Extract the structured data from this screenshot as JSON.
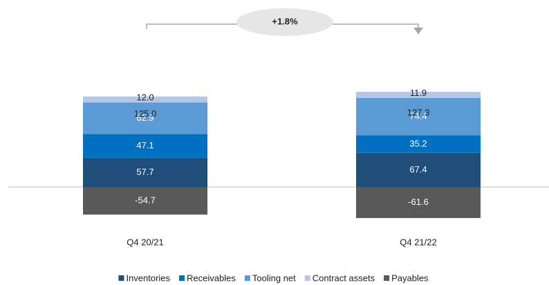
{
  "chart_data": {
    "type": "stacked_bar",
    "annotation": "+1.8%",
    "categories": [
      "Q4 20/21",
      "Q4 21/22"
    ],
    "series": [
      {
        "name": "Inventories",
        "color": "#1f4e79",
        "values": [
          57.7,
          67.4
        ]
      },
      {
        "name": "Receivables",
        "color": "#0070c0",
        "values": [
          47.1,
          35.2
        ]
      },
      {
        "name": "Tooling net",
        "color": "#5b9bd5",
        "values": [
          62.9,
          74.4
        ]
      },
      {
        "name": "Contract assets",
        "color": "#b4c7e7",
        "values": [
          12,
          11.9
        ],
        "value_labels": [
          "12.0",
          "11.9"
        ]
      },
      {
        "name": "Payables",
        "color": "#595959",
        "values": [
          -54.7,
          -61.6
        ]
      }
    ],
    "totals": {
      "values": [
        125,
        127.3
      ],
      "value_labels": [
        "125.0",
        "127.3"
      ]
    },
    "legend": "bottom"
  }
}
